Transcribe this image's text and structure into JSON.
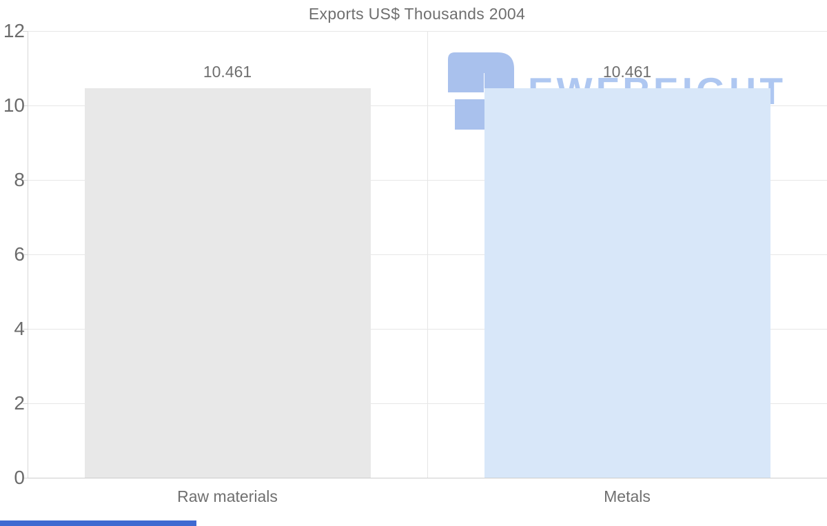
{
  "chart_data": {
    "type": "bar",
    "title": "Exports US$ Thousands 2004",
    "categories": [
      "Raw materials",
      "Metals"
    ],
    "values": [
      10.461,
      10.461
    ],
    "value_labels": [
      "10.461",
      "10.461"
    ],
    "series": [
      {
        "name": "Exports",
        "values": [
          10.461,
          10.461
        ]
      }
    ],
    "bar_colors": [
      "#e8e8e8",
      "#d8e7f9"
    ],
    "xlabel": "",
    "ylabel": "",
    "ylim": [
      0,
      12
    ],
    "yticks": [
      0,
      2,
      4,
      6,
      8,
      10,
      12
    ],
    "grid": true,
    "legend_position": "none"
  },
  "watermark": {
    "text": "EWFREIGHT",
    "logo_icon": "ewfreight-logo",
    "logo_color": "#a9c1ed",
    "text_color": "#aec7f1"
  },
  "colors": {
    "title_text": "#6f6f6f",
    "tick_text": "#6b6b6b",
    "gridline": "#e6e6e6",
    "axis_line": "#d6d6d6",
    "bar_raw_materials": "#e8e8e8",
    "bar_metals": "#d8e7f9",
    "bottom_strip": "#3f6ad1",
    "background": "#ffffff"
  }
}
